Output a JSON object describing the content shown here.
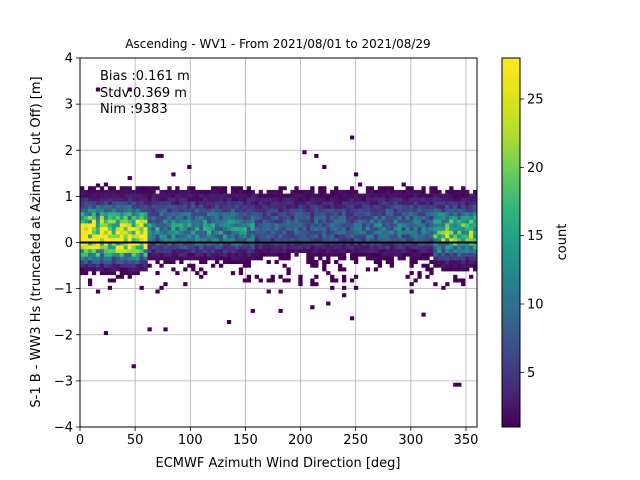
{
  "chart_data": {
    "type": "heatmap",
    "title": "Ascending - WV1 - From 2021/08/01 to 2021/08/29",
    "xlabel": "ECMWF Azimuth Wind Direction [deg]",
    "ylabel": "S-1 B - WW3 Hs (truncated at Azimuth Cut Off) [m]",
    "xlim": [
      0,
      360
    ],
    "ylim": [
      -4,
      4
    ],
    "xticks": [
      "0",
      "50",
      "100",
      "150",
      "200",
      "250",
      "300",
      "350"
    ],
    "yticks": [
      "−4",
      "−3",
      "−2",
      "−1",
      "0",
      "1",
      "2",
      "3",
      "4"
    ],
    "grid": true,
    "zero_line": 0,
    "colorbar": {
      "label": "count",
      "range": [
        1,
        28
      ],
      "ticks": [
        "5",
        "10",
        "15",
        "20",
        "25"
      ],
      "colormap": "viridis"
    },
    "annotations": [
      "Bias :0.161 m",
      "Stdv:0.369 m",
      "Nim :9383"
    ],
    "bins": {
      "x_width": 3.6,
      "y_width": 0.08
    },
    "density_profile": [
      {
        "x_range": [
          0,
          60
        ],
        "peak_count": 28,
        "peak_y": 0.1
      },
      {
        "x_range": [
          60,
          160
        ],
        "peak_count": 12,
        "peak_y": 0.25
      },
      {
        "x_range": [
          160,
          260
        ],
        "peak_count": 8,
        "peak_y": 0.3
      },
      {
        "x_range": [
          260,
          320
        ],
        "peak_count": 10,
        "peak_y": 0.3
      },
      {
        "x_range": [
          320,
          360
        ],
        "peak_count": 18,
        "peak_y": 0.15
      }
    ],
    "outliers": [
      {
        "x": 15,
        "y": 3.35
      },
      {
        "x": 45,
        "y": 3.35
      },
      {
        "x": 247,
        "y": 2.25
      },
      {
        "x": 70,
        "y": 1.85
      },
      {
        "x": 75,
        "y": 1.85
      },
      {
        "x": 205,
        "y": 1.95
      },
      {
        "x": 215,
        "y": 1.9
      },
      {
        "x": 98,
        "y": 1.65
      },
      {
        "x": 85,
        "y": 1.5
      },
      {
        "x": 45,
        "y": 1.4
      },
      {
        "x": 222,
        "y": 1.6
      },
      {
        "x": 250,
        "y": 1.5
      },
      {
        "x": 17,
        "y": 1.25
      },
      {
        "x": 24,
        "y": -1.95
      },
      {
        "x": 48,
        "y": -2.7
      },
      {
        "x": 62,
        "y": -1.85
      },
      {
        "x": 77,
        "y": -1.9
      },
      {
        "x": 135,
        "y": -1.7
      },
      {
        "x": 247,
        "y": -1.65
      },
      {
        "x": 340,
        "y": -3.1
      },
      {
        "x": 343,
        "y": -3.1
      },
      {
        "x": 155,
        "y": -1.5
      },
      {
        "x": 180,
        "y": -1.45
      },
      {
        "x": 212,
        "y": -1.4
      },
      {
        "x": 225,
        "y": -1.35
      },
      {
        "x": 312,
        "y": -1.55
      }
    ]
  }
}
